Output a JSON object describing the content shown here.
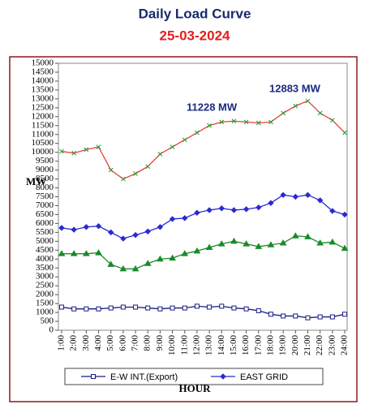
{
  "chart_data": {
    "type": "line",
    "title": "Daily Load Curve",
    "subtitle": "25-03-2024",
    "y_label": "MW",
    "x_label": "HOUR",
    "annotations": [
      "11228 MW",
      "12883 MW"
    ],
    "categories": [
      "1:00",
      "2:00",
      "3:00",
      "4:00",
      "5:00",
      "6:00",
      "7:00",
      "8:00",
      "9:00",
      "10:00",
      "11:00",
      "12:00",
      "13:00",
      "14:00",
      "15:00",
      "16:00",
      "17:00",
      "18:00",
      "19:00",
      "20:00",
      "21:00",
      "22:00",
      "23:00",
      "24:00"
    ],
    "ylim": [
      0,
      15000
    ],
    "yticks": [
      0,
      500,
      1000,
      1500,
      2000,
      2500,
      3000,
      3500,
      4000,
      4500,
      5000,
      5500,
      6000,
      6500,
      7000,
      7500,
      8000,
      8500,
      9000,
      9500,
      10000,
      10500,
      11000,
      11500,
      12000,
      12500,
      13000,
      13500,
      14000,
      14500,
      15000
    ],
    "grid": false,
    "series": [
      {
        "color": "#e8403a",
        "marker_color": "#1a9a2a",
        "marker": "x",
        "values": [
          10050,
          9950,
          10150,
          10300,
          9000,
          8500,
          8800,
          9200,
          9900,
          10300,
          10700,
          11100,
          11500,
          11700,
          11750,
          11700,
          11650,
          11700,
          12200,
          12600,
          12883,
          12200,
          11800,
          11100
        ]
      },
      {
        "name": "EAST GRID",
        "color": "#2a2ad0",
        "marker_color": "#2a2ad0",
        "marker": "diamond",
        "values": [
          5750,
          5650,
          5800,
          5850,
          5500,
          5150,
          5350,
          5550,
          5800,
          6250,
          6300,
          6600,
          6750,
          6850,
          6750,
          6800,
          6900,
          7150,
          7600,
          7500,
          7600,
          7300,
          6700,
          6500
        ]
      },
      {
        "color": "#1a8a2a",
        "marker_color": "#1a8a2a",
        "marker": "triangle",
        "values": [
          4300,
          4300,
          4300,
          4350,
          3700,
          3450,
          3450,
          3750,
          4000,
          4050,
          4300,
          4450,
          4650,
          4850,
          5000,
          4850,
          4700,
          4800,
          4900,
          5300,
          5250,
          4900,
          4950,
          4600
        ]
      },
      {
        "name": "E-W INT.(Export)",
        "color": "#1a1a80",
        "marker_color": "#1a1a80",
        "marker": "square",
        "values": [
          1300,
          1200,
          1200,
          1200,
          1250,
          1300,
          1300,
          1250,
          1200,
          1250,
          1250,
          1350,
          1300,
          1350,
          1250,
          1200,
          1100,
          900,
          800,
          800,
          700,
          750,
          750,
          900
        ]
      }
    ]
  }
}
